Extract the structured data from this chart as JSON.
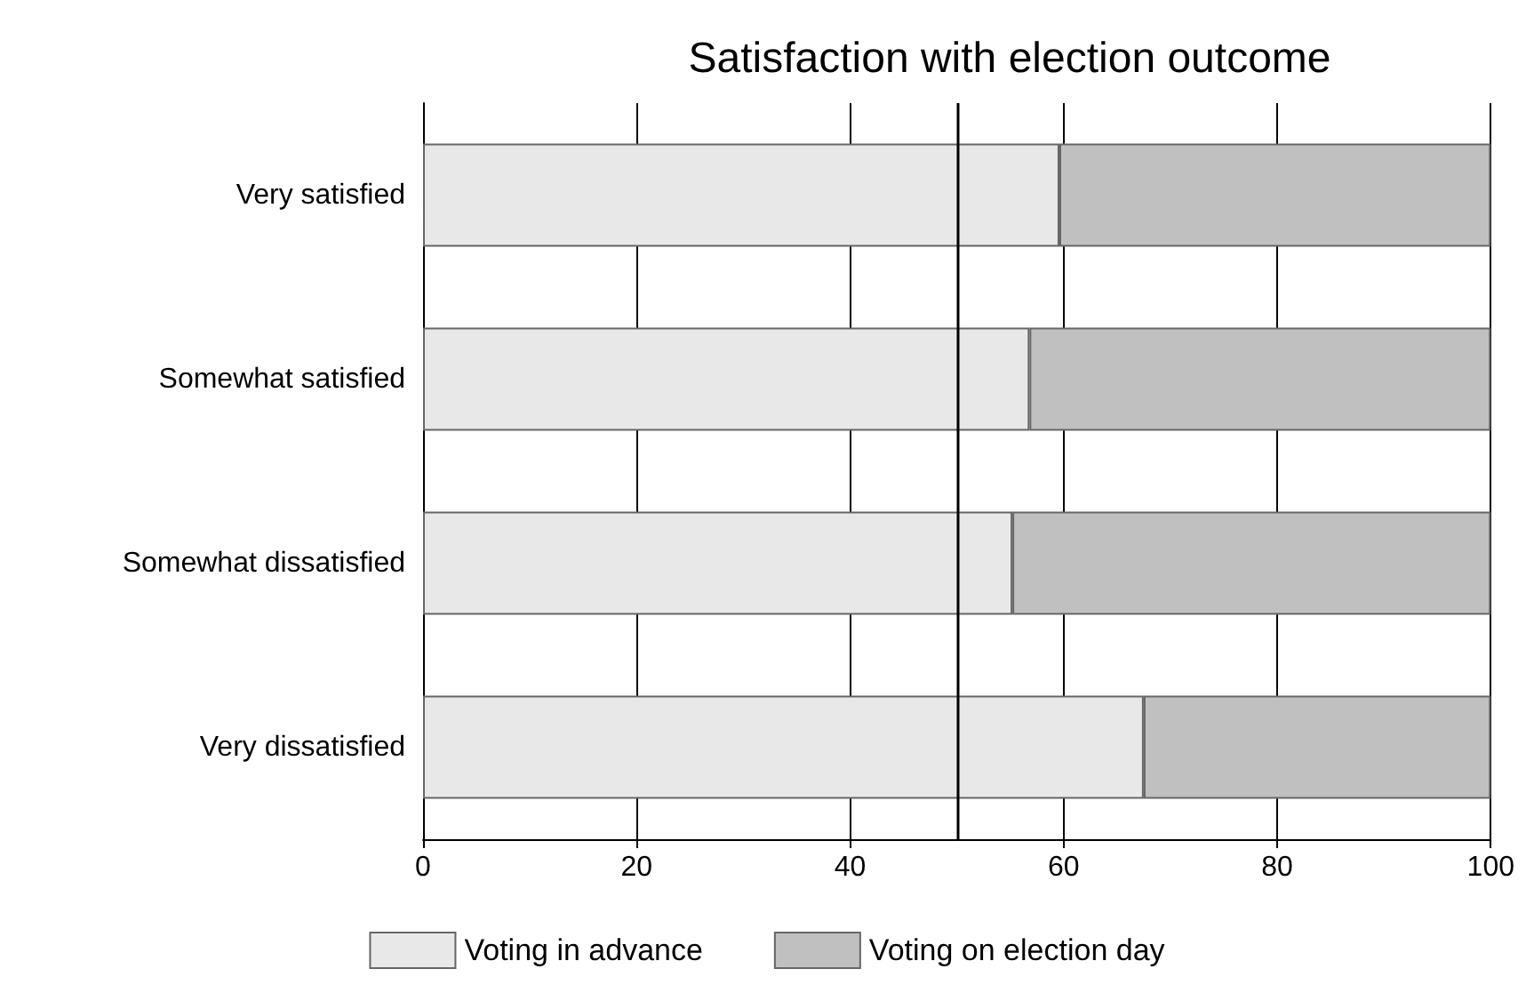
{
  "chart_data": {
    "type": "bar",
    "orientation": "horizontal",
    "stacked": true,
    "title": "Satisfaction with election outcome",
    "categories": [
      "Very satisfied",
      "Somewhat satisfied",
      "Somewhat dissatisfied",
      "Very dissatisfied"
    ],
    "series": [
      {
        "name": "Voting in advance",
        "color": "#e8e8e8",
        "values": [
          59.6,
          56.8,
          55.2,
          67.5
        ]
      },
      {
        "name": "Voting on election day",
        "color": "#c0c0c0",
        "values": [
          40.4,
          43.2,
          44.8,
          32.5
        ]
      }
    ],
    "xlim": [
      0,
      100
    ],
    "xticks": [
      0,
      20,
      40,
      60,
      80,
      100
    ],
    "grid": "x",
    "legend": "bottom",
    "ref_lines": [
      {
        "axis": "x",
        "value": 50,
        "color": "#000000"
      }
    ]
  }
}
